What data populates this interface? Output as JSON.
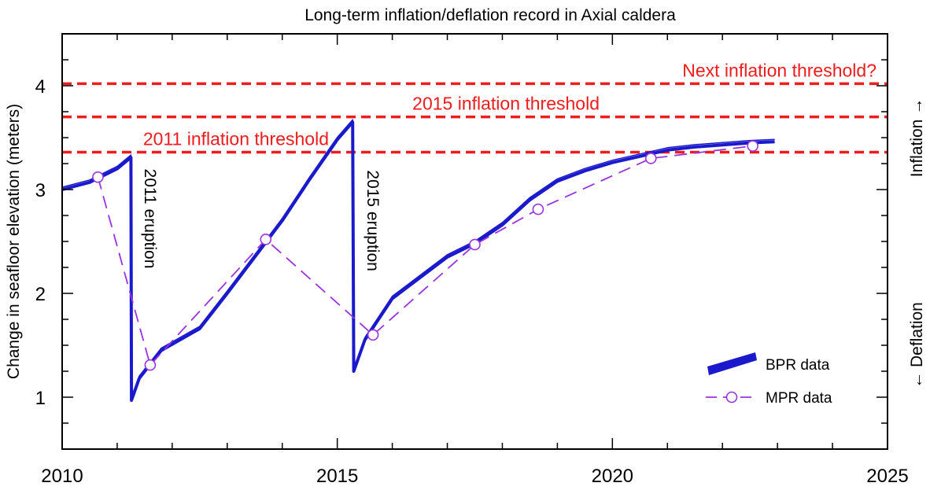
{
  "chart_data": {
    "type": "line",
    "title": "Long-term inflation/deflation record in Axial caldera",
    "xlabel": "",
    "ylabel": "Change in seafloor elevation (meters)",
    "xlim": [
      2010,
      2025
    ],
    "ylim": [
      0.5,
      4.5
    ],
    "x_ticks": [
      2010,
      2015,
      2020,
      2025
    ],
    "x_tick_labels": [
      "2010",
      "2015",
      "2020",
      "2025"
    ],
    "y_ticks": [
      1,
      2,
      3,
      4
    ],
    "y_tick_labels": [
      "1",
      "2",
      "3",
      "4"
    ],
    "grid": false,
    "legend_position": "bottom-right",
    "right_labels": {
      "inflation": "Inflation →",
      "deflation": "← Deflation"
    },
    "thresholds": [
      {
        "label": "Next inflation threshold?",
        "y": 4.02,
        "color": "#ee1c1c"
      },
      {
        "label": "2015 inflation threshold",
        "y": 3.7,
        "color": "#ee1c1c"
      },
      {
        "label": "2011 inflation threshold",
        "y": 3.36,
        "color": "#ee1c1c"
      }
    ],
    "annotations": [
      {
        "text": "2011 eruption",
        "x": 2011.3,
        "y": 2.72
      },
      {
        "text": "2015 eruption",
        "x": 2015.35,
        "y": 2.7
      }
    ],
    "series": [
      {
        "name": "BPR data",
        "style": "thick-line",
        "color": "#1a1acc",
        "points": [
          [
            2010.0,
            3.0
          ],
          [
            2010.5,
            3.07
          ],
          [
            2011.0,
            3.2
          ],
          [
            2011.25,
            3.31
          ],
          [
            2011.26,
            0.97
          ],
          [
            2011.4,
            1.18
          ],
          [
            2011.8,
            1.45
          ],
          [
            2012.5,
            1.66
          ],
          [
            2013.0,
            2.0
          ],
          [
            2013.5,
            2.35
          ],
          [
            2014.0,
            2.7
          ],
          [
            2014.5,
            3.1
          ],
          [
            2015.0,
            3.48
          ],
          [
            2015.28,
            3.65
          ],
          [
            2015.3,
            1.25
          ],
          [
            2015.5,
            1.55
          ],
          [
            2016.0,
            1.95
          ],
          [
            2016.5,
            2.15
          ],
          [
            2017.0,
            2.35
          ],
          [
            2017.5,
            2.48
          ],
          [
            2018.0,
            2.66
          ],
          [
            2018.5,
            2.9
          ],
          [
            2019.0,
            3.08
          ],
          [
            2019.5,
            3.18
          ],
          [
            2020.0,
            3.26
          ],
          [
            2020.5,
            3.32
          ],
          [
            2021.0,
            3.38
          ],
          [
            2021.5,
            3.41
          ],
          [
            2022.0,
            3.43
          ],
          [
            2022.5,
            3.45
          ],
          [
            2022.95,
            3.46
          ]
        ]
      },
      {
        "name": "MPR data",
        "style": "dashed-with-circles",
        "color": "#9933dd",
        "points": [
          [
            2010.65,
            3.12
          ],
          [
            2011.6,
            1.31
          ],
          [
            2013.7,
            2.52
          ],
          [
            2015.65,
            1.6
          ],
          [
            2017.5,
            2.47
          ],
          [
            2018.65,
            2.81
          ],
          [
            2020.7,
            3.3
          ],
          [
            2022.55,
            3.42
          ]
        ]
      }
    ]
  }
}
